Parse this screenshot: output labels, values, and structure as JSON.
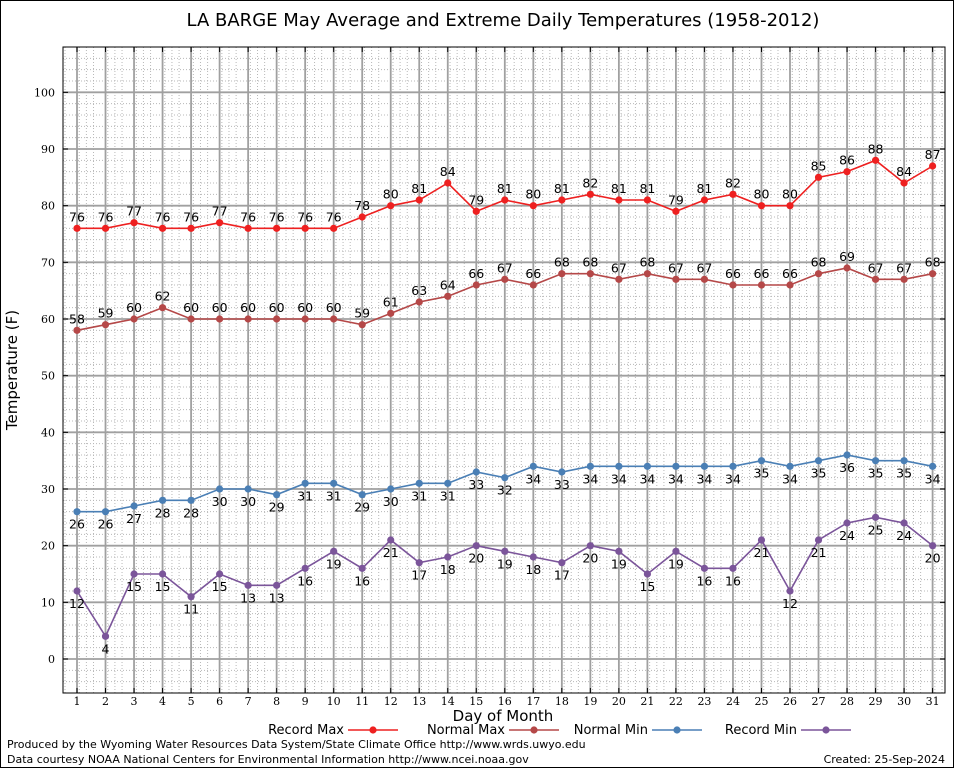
{
  "chart_data": {
    "type": "line",
    "title": "LA BARGE May Average and Extreme Daily Temperatures (1958-2012)",
    "xlabel": "Day of Month",
    "ylabel": "Temperature (F)",
    "x": [
      1,
      2,
      3,
      4,
      5,
      6,
      7,
      8,
      9,
      10,
      11,
      12,
      13,
      14,
      15,
      16,
      17,
      18,
      19,
      20,
      21,
      22,
      23,
      24,
      25,
      26,
      27,
      28,
      29,
      30,
      31
    ],
    "ylim": [
      -6,
      108
    ],
    "yticks": [
      0,
      10,
      20,
      30,
      40,
      50,
      60,
      70,
      80,
      90,
      100
    ],
    "grid": true,
    "legend_position": "bottom",
    "series": [
      {
        "name": "Record Max",
        "color": "#ee2020",
        "values": [
          76,
          76,
          77,
          76,
          76,
          77,
          76,
          76,
          76,
          76,
          78,
          80,
          81,
          84,
          79,
          81,
          80,
          81,
          82,
          81,
          81,
          79,
          81,
          82,
          80,
          80,
          85,
          86,
          88,
          84,
          87
        ]
      },
      {
        "name": "Normal Max",
        "color": "#b54848",
        "values": [
          58,
          59,
          60,
          62,
          60,
          60,
          60,
          60,
          60,
          60,
          59,
          61,
          63,
          64,
          66,
          67,
          66,
          68,
          68,
          67,
          68,
          67,
          67,
          66,
          66,
          66,
          68,
          69,
          67,
          67,
          68
        ]
      },
      {
        "name": "Normal Min",
        "color": "#4a7fb5",
        "values": [
          26,
          26,
          27,
          28,
          28,
          30,
          30,
          29,
          31,
          31,
          29,
          30,
          31,
          31,
          33,
          32,
          34,
          33,
          34,
          34,
          34,
          34,
          34,
          34,
          35,
          34,
          35,
          36,
          35,
          35,
          34
        ]
      },
      {
        "name": "Record Min",
        "color": "#7b559a",
        "values": [
          12,
          4,
          15,
          15,
          11,
          15,
          13,
          13,
          16,
          19,
          16,
          21,
          17,
          18,
          20,
          19,
          18,
          17,
          20,
          19,
          15,
          19,
          16,
          16,
          21,
          12,
          21,
          24,
          25,
          24,
          20
        ]
      }
    ]
  },
  "footer": {
    "line1": "Produced by the Wyoming Water Resources Data System/State Climate Office http://www.wrds.uwyo.edu",
    "line2": "Data courtesy NOAA National Centers for Environmental Information http://www.ncei.noaa.gov",
    "created": "Created:  25-Sep-2024"
  }
}
